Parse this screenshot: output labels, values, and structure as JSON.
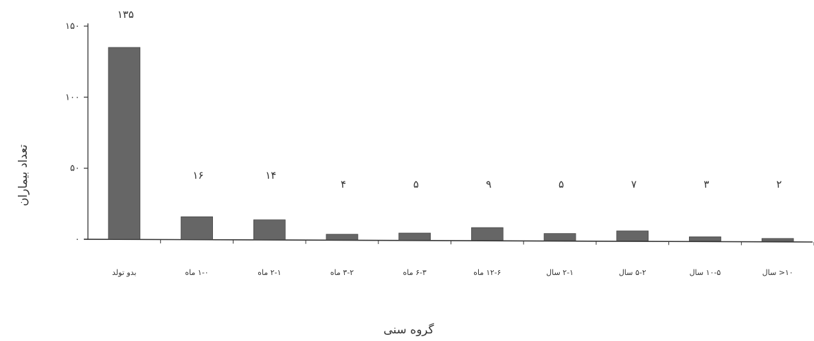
{
  "chart_data": {
    "type": "bar",
    "categories": [
      "بدو تولد",
      "۱-۰ ماه",
      "۲-۱ ماه",
      "۳-۲ ماه",
      "۶-۳ ماه",
      "۱۲-۶ ماه",
      "۲-۱ سال",
      "۵-۲ سال",
      "۱۰-۵ سال",
      "۱۰< سال"
    ],
    "values": [
      135,
      16,
      14,
      4,
      5,
      9,
      5,
      7,
      3,
      2
    ],
    "value_labels": [
      "۱۳۵",
      "۱۶",
      "۱۴",
      "۴",
      "۵",
      "۹",
      "۵",
      "۷",
      "۳",
      "۲"
    ],
    "xlabel": "گروه سنی",
    "ylabel": "تعداد بیماران",
    "yticks": [
      0,
      50,
      100,
      150
    ],
    "ytick_labels": [
      "۰",
      "۵۰",
      "۱۰۰",
      "۱۵۰"
    ],
    "ylim": [
      0,
      150
    ],
    "bar_color": "#666666"
  }
}
